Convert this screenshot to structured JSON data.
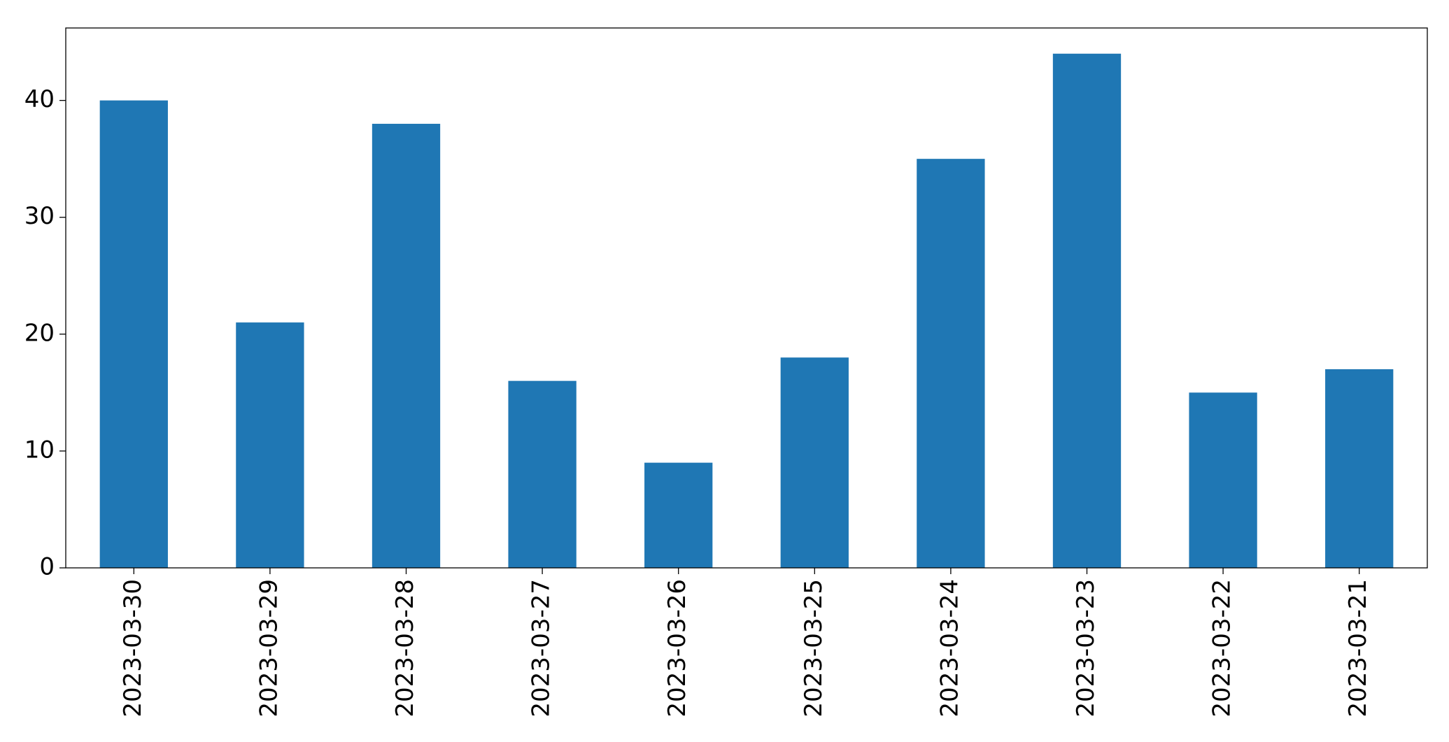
{
  "chart_data": {
    "type": "bar",
    "categories": [
      "2023-03-30",
      "2023-03-29",
      "2023-03-28",
      "2023-03-27",
      "2023-03-26",
      "2023-03-25",
      "2023-03-24",
      "2023-03-23",
      "2023-03-22",
      "2023-03-21"
    ],
    "values": [
      40,
      21,
      38,
      16,
      9,
      18,
      35,
      44,
      15,
      17
    ],
    "color": "#1f77b4",
    "ylim": [
      0,
      46.2
    ],
    "yticks": [
      0,
      10,
      20,
      30,
      40
    ],
    "grid": false
  }
}
